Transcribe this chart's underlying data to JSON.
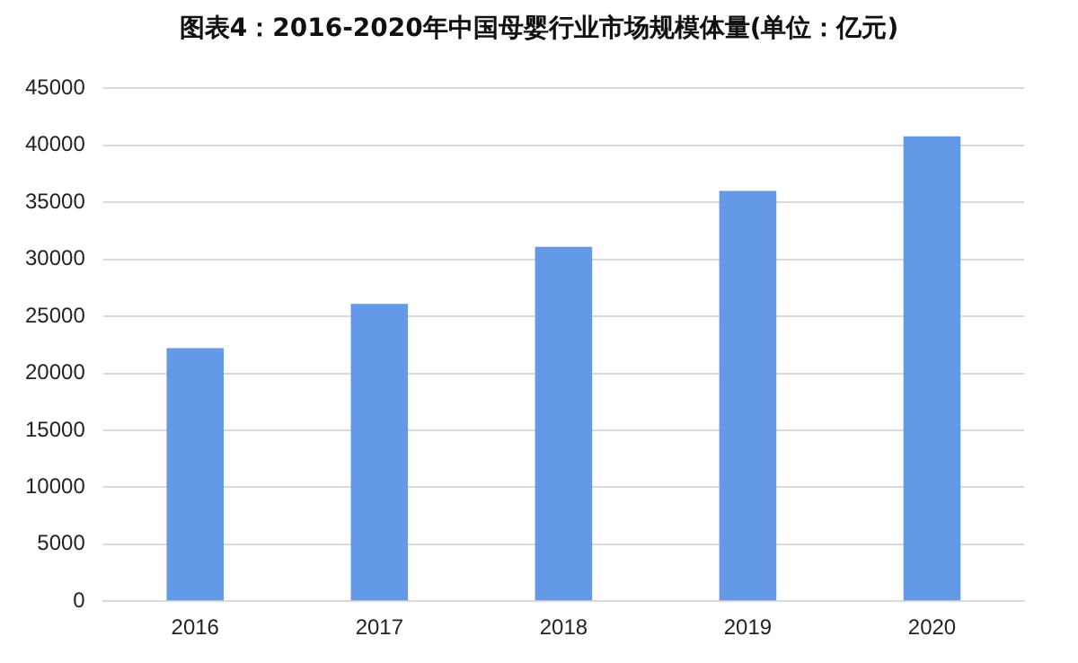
{
  "chart_data": {
    "type": "bar",
    "title": "图表4：2016-2020年中国母婴行业市场规模体量(单位：亿元)",
    "categories": [
      "2016",
      "2017",
      "2018",
      "2019",
      "2020"
    ],
    "values": [
      22200,
      26100,
      31100,
      36000,
      40800
    ],
    "color": "#6399e6",
    "ylim": [
      0,
      45000
    ],
    "yticks": [
      0,
      5000,
      10000,
      15000,
      20000,
      25000,
      30000,
      35000,
      40000,
      45000
    ],
    "grid": "y",
    "legend": false
  }
}
